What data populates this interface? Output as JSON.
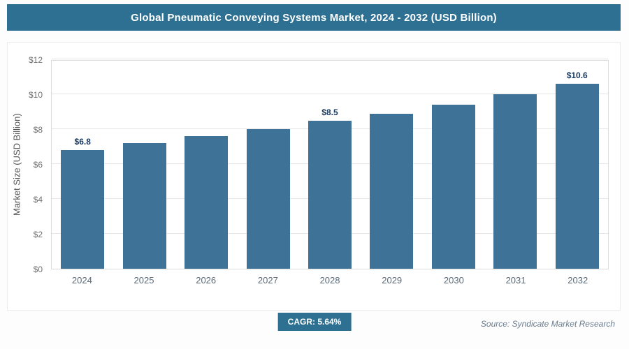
{
  "header": {
    "title": "Global Pneumatic Conveying Systems Market, 2024 - 2032 (USD Billion)"
  },
  "chart_data": {
    "type": "bar",
    "title": "Global Pneumatic Conveying Systems Market, 2024 - 2032 (USD Billion)",
    "categories": [
      "2024",
      "2025",
      "2026",
      "2027",
      "2028",
      "2029",
      "2030",
      "2031",
      "2032"
    ],
    "values": [
      6.8,
      7.2,
      7.6,
      8.0,
      8.5,
      8.9,
      9.4,
      10.0,
      10.6
    ],
    "point_labels": [
      "$6.8",
      "",
      "",
      "",
      "$8.5",
      "",
      "",
      "",
      "$10.6"
    ],
    "xlabel": "",
    "ylabel": "Market Size (USD Billion)",
    "ylim": [
      0,
      12
    ],
    "yticks": [
      0,
      2,
      4,
      6,
      8,
      10,
      12
    ],
    "ytick_labels": [
      "$0",
      "$2",
      "$4",
      "$6",
      "$8",
      "$10",
      "$12"
    ],
    "grid": true,
    "legend": false
  },
  "footer": {
    "cagr_label": "CAGR: 5.64%",
    "source": "Source: Syndicate Market Research"
  },
  "colors": {
    "header_bg": "#2d7092",
    "bar": "#3e7397",
    "badge_bg": "#2d7092",
    "value_label_text": "#17375e",
    "gridline": "#e6e6e6"
  }
}
